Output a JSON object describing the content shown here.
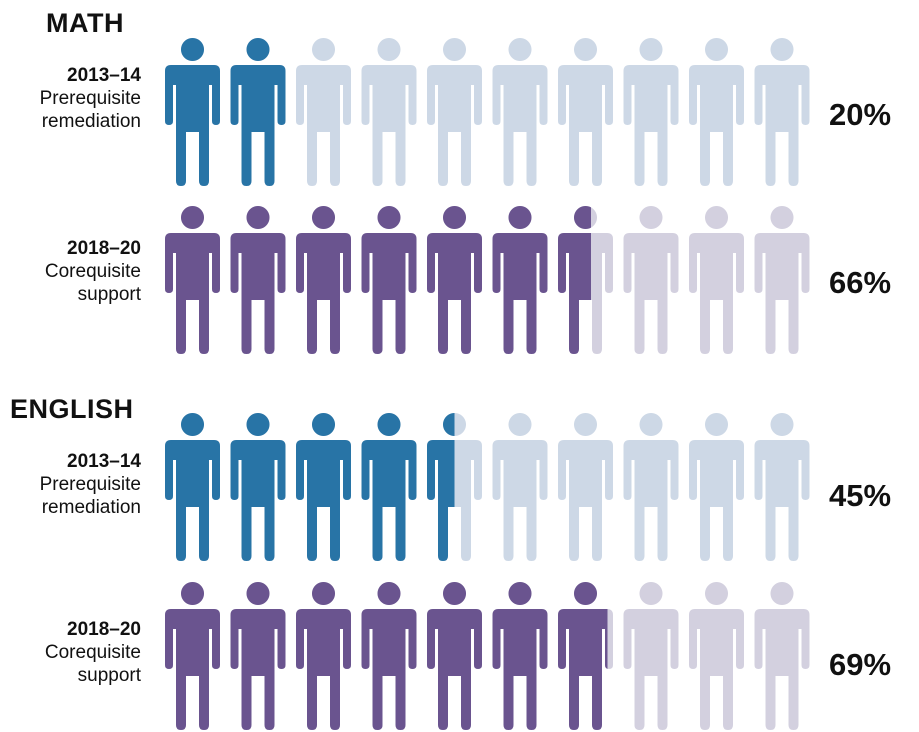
{
  "chart_data": {
    "type": "pictograph",
    "icons_per_row": 10,
    "sections": [
      {
        "title": "MATH",
        "rows": [
          {
            "year": "2013–14",
            "label_line1": "Prerequisite",
            "label_line2": "remediation",
            "value": 20,
            "value_label": "20%",
            "fill_color": "#2874a6",
            "empty_color": "#cdd8e6"
          },
          {
            "year": "2018–20",
            "label_line1": "Corequisite",
            "label_line2": "support",
            "value": 66,
            "value_label": "66%",
            "fill_color": "#6a548f",
            "empty_color": "#d3d0df"
          }
        ]
      },
      {
        "title": "ENGLISH",
        "rows": [
          {
            "year": "2013–14",
            "label_line1": "Prerequisite",
            "label_line2": "remediation",
            "value": 45,
            "value_label": "45%",
            "fill_color": "#2874a6",
            "empty_color": "#cdd8e6"
          },
          {
            "year": "2018–20",
            "label_line1": "Corequisite",
            "label_line2": "support",
            "value": 69,
            "value_label": "69%",
            "fill_color": "#6a548f",
            "empty_color": "#d3d0df"
          }
        ]
      }
    ],
    "icon": "person-icon"
  }
}
